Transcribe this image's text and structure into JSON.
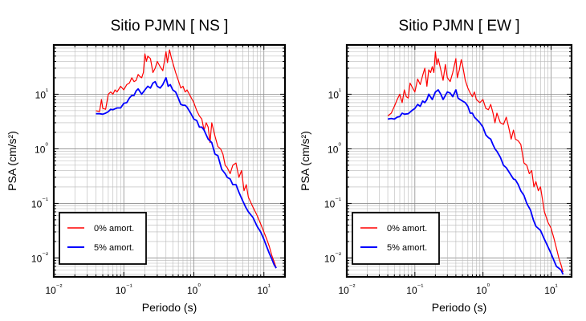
{
  "chart_data": [
    {
      "type": "line",
      "title": "Sitio PJMN [ NS ]",
      "xlabel": "Periodo (s)",
      "ylabel": "PSA (cm/s²)",
      "xscale": "log",
      "yscale": "log",
      "xlim": [
        0.01,
        20
      ],
      "ylim": [
        0.0045,
        80
      ],
      "grid": true,
      "legend_position": "bottom-left",
      "x_ticks": [
        "10⁻²",
        "10⁻¹",
        "10⁰",
        "10¹"
      ],
      "y_ticks": [
        "10⁻²",
        "10⁻¹",
        "10⁰",
        "10¹"
      ],
      "series": [
        {
          "name": "0% amort.",
          "color": "#ff0000",
          "x": [
            0.04,
            0.045,
            0.048,
            0.05,
            0.055,
            0.06,
            0.065,
            0.07,
            0.075,
            0.08,
            0.09,
            0.1,
            0.11,
            0.12,
            0.13,
            0.14,
            0.15,
            0.16,
            0.17,
            0.18,
            0.19,
            0.2,
            0.21,
            0.22,
            0.24,
            0.26,
            0.28,
            0.3,
            0.33,
            0.36,
            0.4,
            0.42,
            0.45,
            0.48,
            0.5,
            0.55,
            0.6,
            0.65,
            0.7,
            0.75,
            0.8,
            0.9,
            1.0,
            1.1,
            1.2,
            1.3,
            1.4,
            1.5,
            1.6,
            1.7,
            1.8,
            2.0,
            2.2,
            2.4,
            2.6,
            2.8,
            3.0,
            3.3,
            3.6,
            4.0,
            4.4,
            4.8,
            5.2,
            5.6,
            6.0,
            7.0,
            8.0,
            9.0,
            10.0,
            11.0,
            12.0,
            13.0,
            14.0,
            15.0
          ],
          "values": [
            5.0,
            4.8,
            8.0,
            5.5,
            5.3,
            10.0,
            11.0,
            10.0,
            12.0,
            11.0,
            14.0,
            12.0,
            15.0,
            16.0,
            20.0,
            17.0,
            18.0,
            23.0,
            21.0,
            20.0,
            25.0,
            55.0,
            40.0,
            50.0,
            45.0,
            25.0,
            30.0,
            40.0,
            32.0,
            27.0,
            60.0,
            38.0,
            65.0,
            45.0,
            38.0,
            25.0,
            18.0,
            13.0,
            14.0,
            11.0,
            12.0,
            9.0,
            7.0,
            5.0,
            4.0,
            3.5,
            2.2,
            3.0,
            2.5,
            1.3,
            3.0,
            1.7,
            1.1,
            1.0,
            0.8,
            0.5,
            0.45,
            0.35,
            0.5,
            0.55,
            0.3,
            0.4,
            0.17,
            0.22,
            0.13,
            0.085,
            0.06,
            0.042,
            0.03,
            0.022,
            0.016,
            0.011,
            0.0085,
            0.0065
          ]
        },
        {
          "name": "5% amort.",
          "color": "#0000ff",
          "x": [
            0.04,
            0.045,
            0.05,
            0.055,
            0.06,
            0.065,
            0.07,
            0.08,
            0.09,
            0.1,
            0.11,
            0.12,
            0.13,
            0.14,
            0.15,
            0.16,
            0.18,
            0.2,
            0.22,
            0.24,
            0.26,
            0.28,
            0.3,
            0.33,
            0.36,
            0.4,
            0.43,
            0.46,
            0.5,
            0.55,
            0.6,
            0.65,
            0.7,
            0.75,
            0.8,
            0.9,
            1.0,
            1.1,
            1.2,
            1.3,
            1.4,
            1.5,
            1.6,
            1.8,
            2.0,
            2.2,
            2.5,
            2.8,
            3.0,
            3.3,
            3.6,
            4.0,
            4.4,
            5.0,
            5.5,
            6.0,
            7.0,
            8.0,
            9.0,
            10.0,
            11.0,
            12.0,
            13.0,
            14.0,
            15.0
          ],
          "values": [
            4.4,
            4.4,
            4.3,
            4.5,
            4.8,
            5.3,
            5.2,
            5.6,
            5.6,
            6.8,
            7.0,
            8.5,
            9.5,
            9.5,
            11.5,
            12.5,
            10.0,
            12.0,
            14.0,
            13.0,
            16.0,
            17.0,
            14.0,
            13.0,
            15.0,
            20.0,
            14.0,
            15.0,
            12.0,
            11.0,
            8.5,
            6.5,
            6.3,
            6.3,
            5.8,
            4.5,
            3.5,
            3.3,
            2.5,
            2.5,
            2.2,
            1.8,
            1.5,
            1.3,
            0.8,
            0.75,
            0.42,
            0.35,
            0.3,
            0.28,
            0.22,
            0.22,
            0.16,
            0.11,
            0.085,
            0.07,
            0.055,
            0.038,
            0.03,
            0.022,
            0.016,
            0.012,
            0.0095,
            0.0075,
            0.0065
          ]
        }
      ]
    },
    {
      "type": "line",
      "title": "Sitio PJMN [ EW ]",
      "xlabel": "Periodo (s)",
      "ylabel": "PSA (cm/s²)",
      "xscale": "log",
      "yscale": "log",
      "xlim": [
        0.01,
        20
      ],
      "ylim": [
        0.0045,
        80
      ],
      "grid": true,
      "legend_position": "bottom-left",
      "x_ticks": [
        "10⁻²",
        "10⁻¹",
        "10⁰",
        "10¹"
      ],
      "y_ticks": [
        "10⁻²",
        "10⁻¹",
        "10⁰",
        "10¹"
      ],
      "series": [
        {
          "name": "0% amort.",
          "color": "#ff0000",
          "x": [
            0.04,
            0.045,
            0.05,
            0.055,
            0.06,
            0.065,
            0.07,
            0.075,
            0.08,
            0.085,
            0.09,
            0.1,
            0.11,
            0.12,
            0.13,
            0.14,
            0.15,
            0.16,
            0.17,
            0.18,
            0.19,
            0.2,
            0.21,
            0.22,
            0.24,
            0.26,
            0.28,
            0.3,
            0.33,
            0.36,
            0.4,
            0.42,
            0.45,
            0.48,
            0.5,
            0.55,
            0.6,
            0.65,
            0.7,
            0.75,
            0.8,
            0.9,
            1.0,
            1.1,
            1.2,
            1.3,
            1.4,
            1.5,
            1.6,
            1.8,
            2.0,
            2.2,
            2.4,
            2.6,
            2.8,
            3.0,
            3.3,
            3.6,
            4.0,
            4.4,
            4.8,
            5.2,
            5.6,
            6.0,
            6.5,
            7.0,
            8.0,
            9.0,
            10.0,
            11.0,
            12.0,
            13.0,
            14.0,
            15.0
          ],
          "values": [
            4.0,
            4.5,
            6.0,
            8.0,
            10.0,
            7.0,
            12.0,
            9.0,
            8.5,
            16.0,
            14.0,
            11.0,
            19.0,
            15.0,
            22.0,
            30.0,
            14.0,
            28.0,
            25.0,
            32.0,
            25.0,
            60.0,
            35.0,
            45.0,
            28.0,
            18.0,
            35.0,
            20.0,
            17.0,
            25.0,
            45.0,
            20.0,
            28.0,
            43.0,
            35.0,
            18.0,
            13.0,
            10.5,
            9.0,
            11.0,
            8.0,
            7.0,
            8.0,
            5.5,
            5.2,
            6.5,
            4.6,
            3.0,
            4.5,
            3.0,
            2.8,
            3.8,
            2.4,
            1.5,
            2.2,
            1.5,
            1.4,
            1.2,
            0.55,
            0.5,
            0.35,
            0.4,
            0.2,
            0.25,
            0.17,
            0.2,
            0.07,
            0.045,
            0.035,
            0.023,
            0.015,
            0.01,
            0.0075,
            0.0055
          ]
        },
        {
          "name": "5% amort.",
          "color": "#0000ff",
          "x": [
            0.04,
            0.045,
            0.05,
            0.055,
            0.06,
            0.065,
            0.07,
            0.08,
            0.09,
            0.1,
            0.11,
            0.12,
            0.13,
            0.14,
            0.15,
            0.16,
            0.18,
            0.2,
            0.22,
            0.24,
            0.26,
            0.28,
            0.3,
            0.33,
            0.36,
            0.4,
            0.43,
            0.46,
            0.5,
            0.55,
            0.6,
            0.65,
            0.7,
            0.75,
            0.8,
            0.9,
            1.0,
            1.1,
            1.2,
            1.3,
            1.4,
            1.5,
            1.6,
            1.8,
            2.0,
            2.2,
            2.5,
            2.8,
            3.0,
            3.3,
            3.6,
            4.0,
            4.4,
            5.0,
            5.5,
            6.0,
            7.0,
            8.0,
            9.0,
            10.0,
            11.0,
            12.0,
            13.0,
            14.0,
            15.0
          ],
          "values": [
            3.5,
            3.6,
            3.5,
            3.8,
            3.9,
            4.5,
            4.3,
            4.4,
            5.0,
            5.5,
            6.5,
            6.0,
            7.5,
            7.0,
            8.0,
            10.0,
            8.0,
            11.0,
            12.0,
            10.0,
            8.0,
            9.5,
            11.0,
            10.5,
            9.0,
            12.0,
            8.5,
            8.0,
            7.5,
            7.0,
            6.0,
            4.5,
            4.5,
            3.8,
            3.5,
            3.0,
            2.5,
            1.8,
            1.6,
            1.5,
            1.2,
            1.0,
            0.9,
            0.7,
            0.5,
            0.45,
            0.35,
            0.28,
            0.27,
            0.22,
            0.17,
            0.14,
            0.1,
            0.075,
            0.05,
            0.038,
            0.032,
            0.022,
            0.016,
            0.012,
            0.009,
            0.007,
            0.0065,
            0.006,
            0.005
          ]
        }
      ]
    }
  ]
}
